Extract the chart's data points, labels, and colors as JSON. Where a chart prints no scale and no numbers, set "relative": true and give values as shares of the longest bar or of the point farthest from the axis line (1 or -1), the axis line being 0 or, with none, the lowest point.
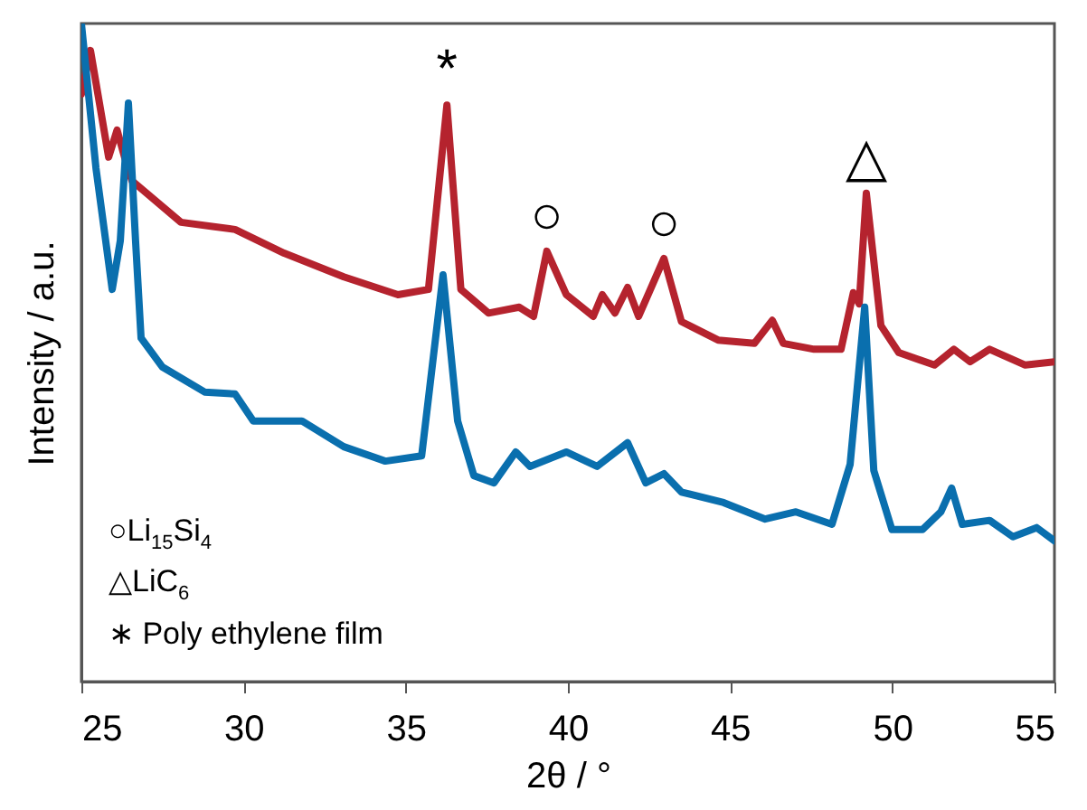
{
  "chart_data": {
    "type": "line",
    "relative": true,
    "xlabel": "2θ / °",
    "ylabel": "Intensity / a.u.",
    "xlim": [
      25,
      55
    ],
    "xticks": [
      25,
      30,
      35,
      40,
      45,
      50,
      55
    ],
    "series": [
      {
        "color": "#b5232e",
        "x": [
          25.0,
          25.28,
          25.84,
          26.1,
          26.33,
          26.56,
          28.07,
          29.74,
          31.25,
          33.09,
          34.76,
          35.7,
          36.27,
          36.7,
          37.55,
          38.5,
          38.94,
          39.35,
          39.95,
          40.78,
          41.06,
          41.45,
          41.84,
          42.18,
          42.96,
          43.5,
          44.63,
          45.75,
          46.3,
          46.64,
          47.59,
          48.42,
          48.8,
          48.98,
          49.2,
          49.65,
          50.2,
          51.3,
          51.9,
          52.4,
          53.0,
          54.1,
          55.0
        ],
        "values": [
          0.893,
          0.959,
          0.797,
          0.838,
          0.797,
          0.761,
          0.698,
          0.687,
          0.651,
          0.615,
          0.588,
          0.596,
          0.876,
          0.596,
          0.56,
          0.569,
          0.555,
          0.654,
          0.588,
          0.555,
          0.588,
          0.56,
          0.599,
          0.555,
          0.643,
          0.547,
          0.519,
          0.514,
          0.549,
          0.514,
          0.505,
          0.505,
          0.591,
          0.574,
          0.742,
          0.541,
          0.5,
          0.481,
          0.505,
          0.486,
          0.505,
          0.481,
          0.486
        ]
      },
      {
        "color": "#0a6fae",
        "x": [
          25.0,
          25.45,
          25.95,
          26.2,
          26.45,
          26.67,
          26.84,
          27.5,
          28.8,
          29.74,
          30.3,
          31.8,
          33.09,
          34.37,
          35.49,
          36.15,
          36.6,
          37.1,
          37.72,
          38.39,
          38.83,
          39.95,
          40.9,
          41.84,
          42.4,
          42.96,
          43.5,
          44.8,
          46.08,
          47.03,
          48.14,
          48.7,
          49.15,
          49.43,
          49.99,
          50.93,
          51.5,
          51.83,
          52.16,
          53.0,
          53.72,
          54.45,
          55.0
        ],
        "values": [
          1.0,
          0.78,
          0.596,
          0.67,
          0.879,
          0.67,
          0.522,
          0.478,
          0.44,
          0.437,
          0.396,
          0.396,
          0.357,
          0.335,
          0.343,
          0.618,
          0.396,
          0.313,
          0.302,
          0.349,
          0.327,
          0.349,
          0.327,
          0.363,
          0.302,
          0.316,
          0.288,
          0.272,
          0.247,
          0.258,
          0.239,
          0.33,
          0.569,
          0.321,
          0.231,
          0.231,
          0.258,
          0.294,
          0.239,
          0.245,
          0.22,
          0.234,
          0.214
        ]
      }
    ],
    "annotations": [
      {
        "text": "*",
        "x": 36.27,
        "y": 0.876
      },
      {
        "text": "○",
        "x": 39.35,
        "y": 0.654
      },
      {
        "text": "○",
        "x": 42.96,
        "y": 0.643
      },
      {
        "text": "△",
        "x": 49.2,
        "y": 0.742
      },
      "○Li$_{15}$Si$_{4}$",
      "△LiC$_{6}$",
      "∗ Poly ethylene film"
    ]
  }
}
